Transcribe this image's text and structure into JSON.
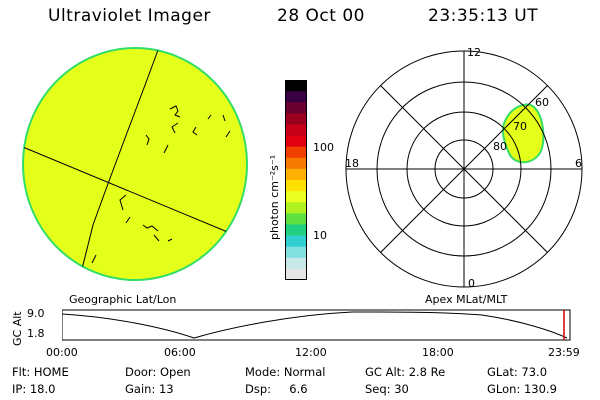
{
  "header": {
    "instrument": "Ultraviolet Imager",
    "date": "28 Oct 00",
    "time": "23:35:13 UT"
  },
  "left_panel": {
    "label": "Geographic Lat/Lon",
    "fill_color": "#e4ff1a",
    "edge_color": "#33dd66"
  },
  "colorbar": {
    "unit_label": "photon cm⁻²s⁻¹",
    "tick_100": "100",
    "tick_10": "10",
    "colors": [
      "#000000",
      "#3a0044",
      "#6a0030",
      "#9a0020",
      "#c80018",
      "#e00010",
      "#f04000",
      "#f77a00",
      "#ffb000",
      "#ffe000",
      "#e8ff20",
      "#b0f020",
      "#60e040",
      "#20d080",
      "#30d0d0",
      "#80e0e0",
      "#c8e8e8",
      "#e6e6e6"
    ]
  },
  "right_panel": {
    "label": "Apex MLat/MLT",
    "mlt_top": "12",
    "mlt_bottom": "0",
    "mlt_left": "18",
    "mlt_right": "6",
    "lat_60": "60",
    "lat_70": "70",
    "lat_80": "80",
    "blob_color": "#e4ff1a"
  },
  "altitude_strip": {
    "axis_label": "GC Alt",
    "y_top": "9.0",
    "y_bottom": "1.8",
    "time_ticks": [
      "00:00",
      "06:00",
      "12:00",
      "18:00",
      "23:59"
    ],
    "cursor_color": "#cc0000"
  },
  "info": {
    "flt": "Flt: HOME",
    "door": "Door: Open",
    "mode": "Mode: Normal",
    "gc_alt": "GC Alt: 2.8 Re",
    "glat": "GLat: 73.0",
    "ip": "IP: 18.0",
    "gain": "Gain: 13",
    "dsp": "Dsp:     6.6",
    "seq": "Seq: 30",
    "glon": "GLon: 130.9"
  }
}
